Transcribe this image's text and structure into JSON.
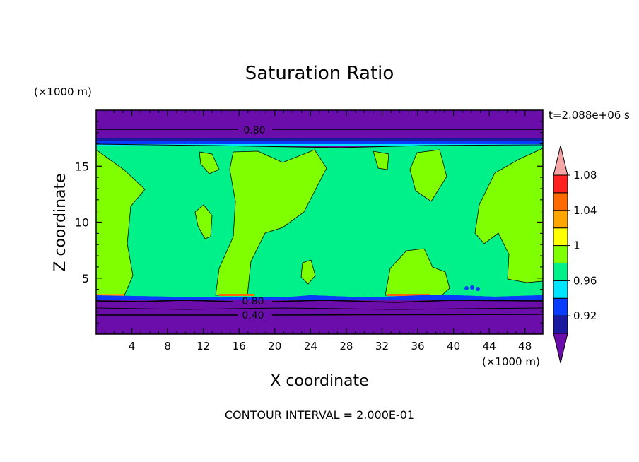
{
  "chart_data": {
    "type": "heatmap",
    "title": "Saturation Ratio",
    "xlabel": "X coordinate",
    "ylabel": "Z coordinate",
    "x_unit": "(×1000 m)",
    "y_unit": "(×1000 m)",
    "time_label": "t=2.088e+06 s",
    "footer": "CONTOUR INTERVAL = 2.000E-01",
    "xlim": [
      0,
      50
    ],
    "ylim": [
      0,
      20
    ],
    "x_ticks": [
      "4",
      "8",
      "12",
      "16",
      "20",
      "24",
      "28",
      "32",
      "36",
      "40",
      "44",
      "48"
    ],
    "y_ticks": [
      "5",
      "10",
      "15"
    ],
    "contour_labels": [
      "0.80",
      "0.80",
      "0.40"
    ],
    "colorbar": {
      "labels": [
        "0.92",
        "0.96",
        "1",
        "1.04",
        "1.08"
      ],
      "levels": [
        0.9,
        0.92,
        0.94,
        0.96,
        0.98,
        1.0,
        1.02,
        1.04,
        1.06,
        1.08,
        1.1
      ],
      "colors": [
        "#6a0dab",
        "#1a1aa0",
        "#0a3cff",
        "#00e5ff",
        "#00f08a",
        "#80ff00",
        "#ffff00",
        "#ffa500",
        "#ff6a00",
        "#ff2020",
        "#f4a6a6"
      ]
    },
    "colors": {
      "low": "#6a0dab",
      "mid": "#00f08a",
      "high": "#80ff00",
      "edge": "#0a3cff"
    }
  }
}
